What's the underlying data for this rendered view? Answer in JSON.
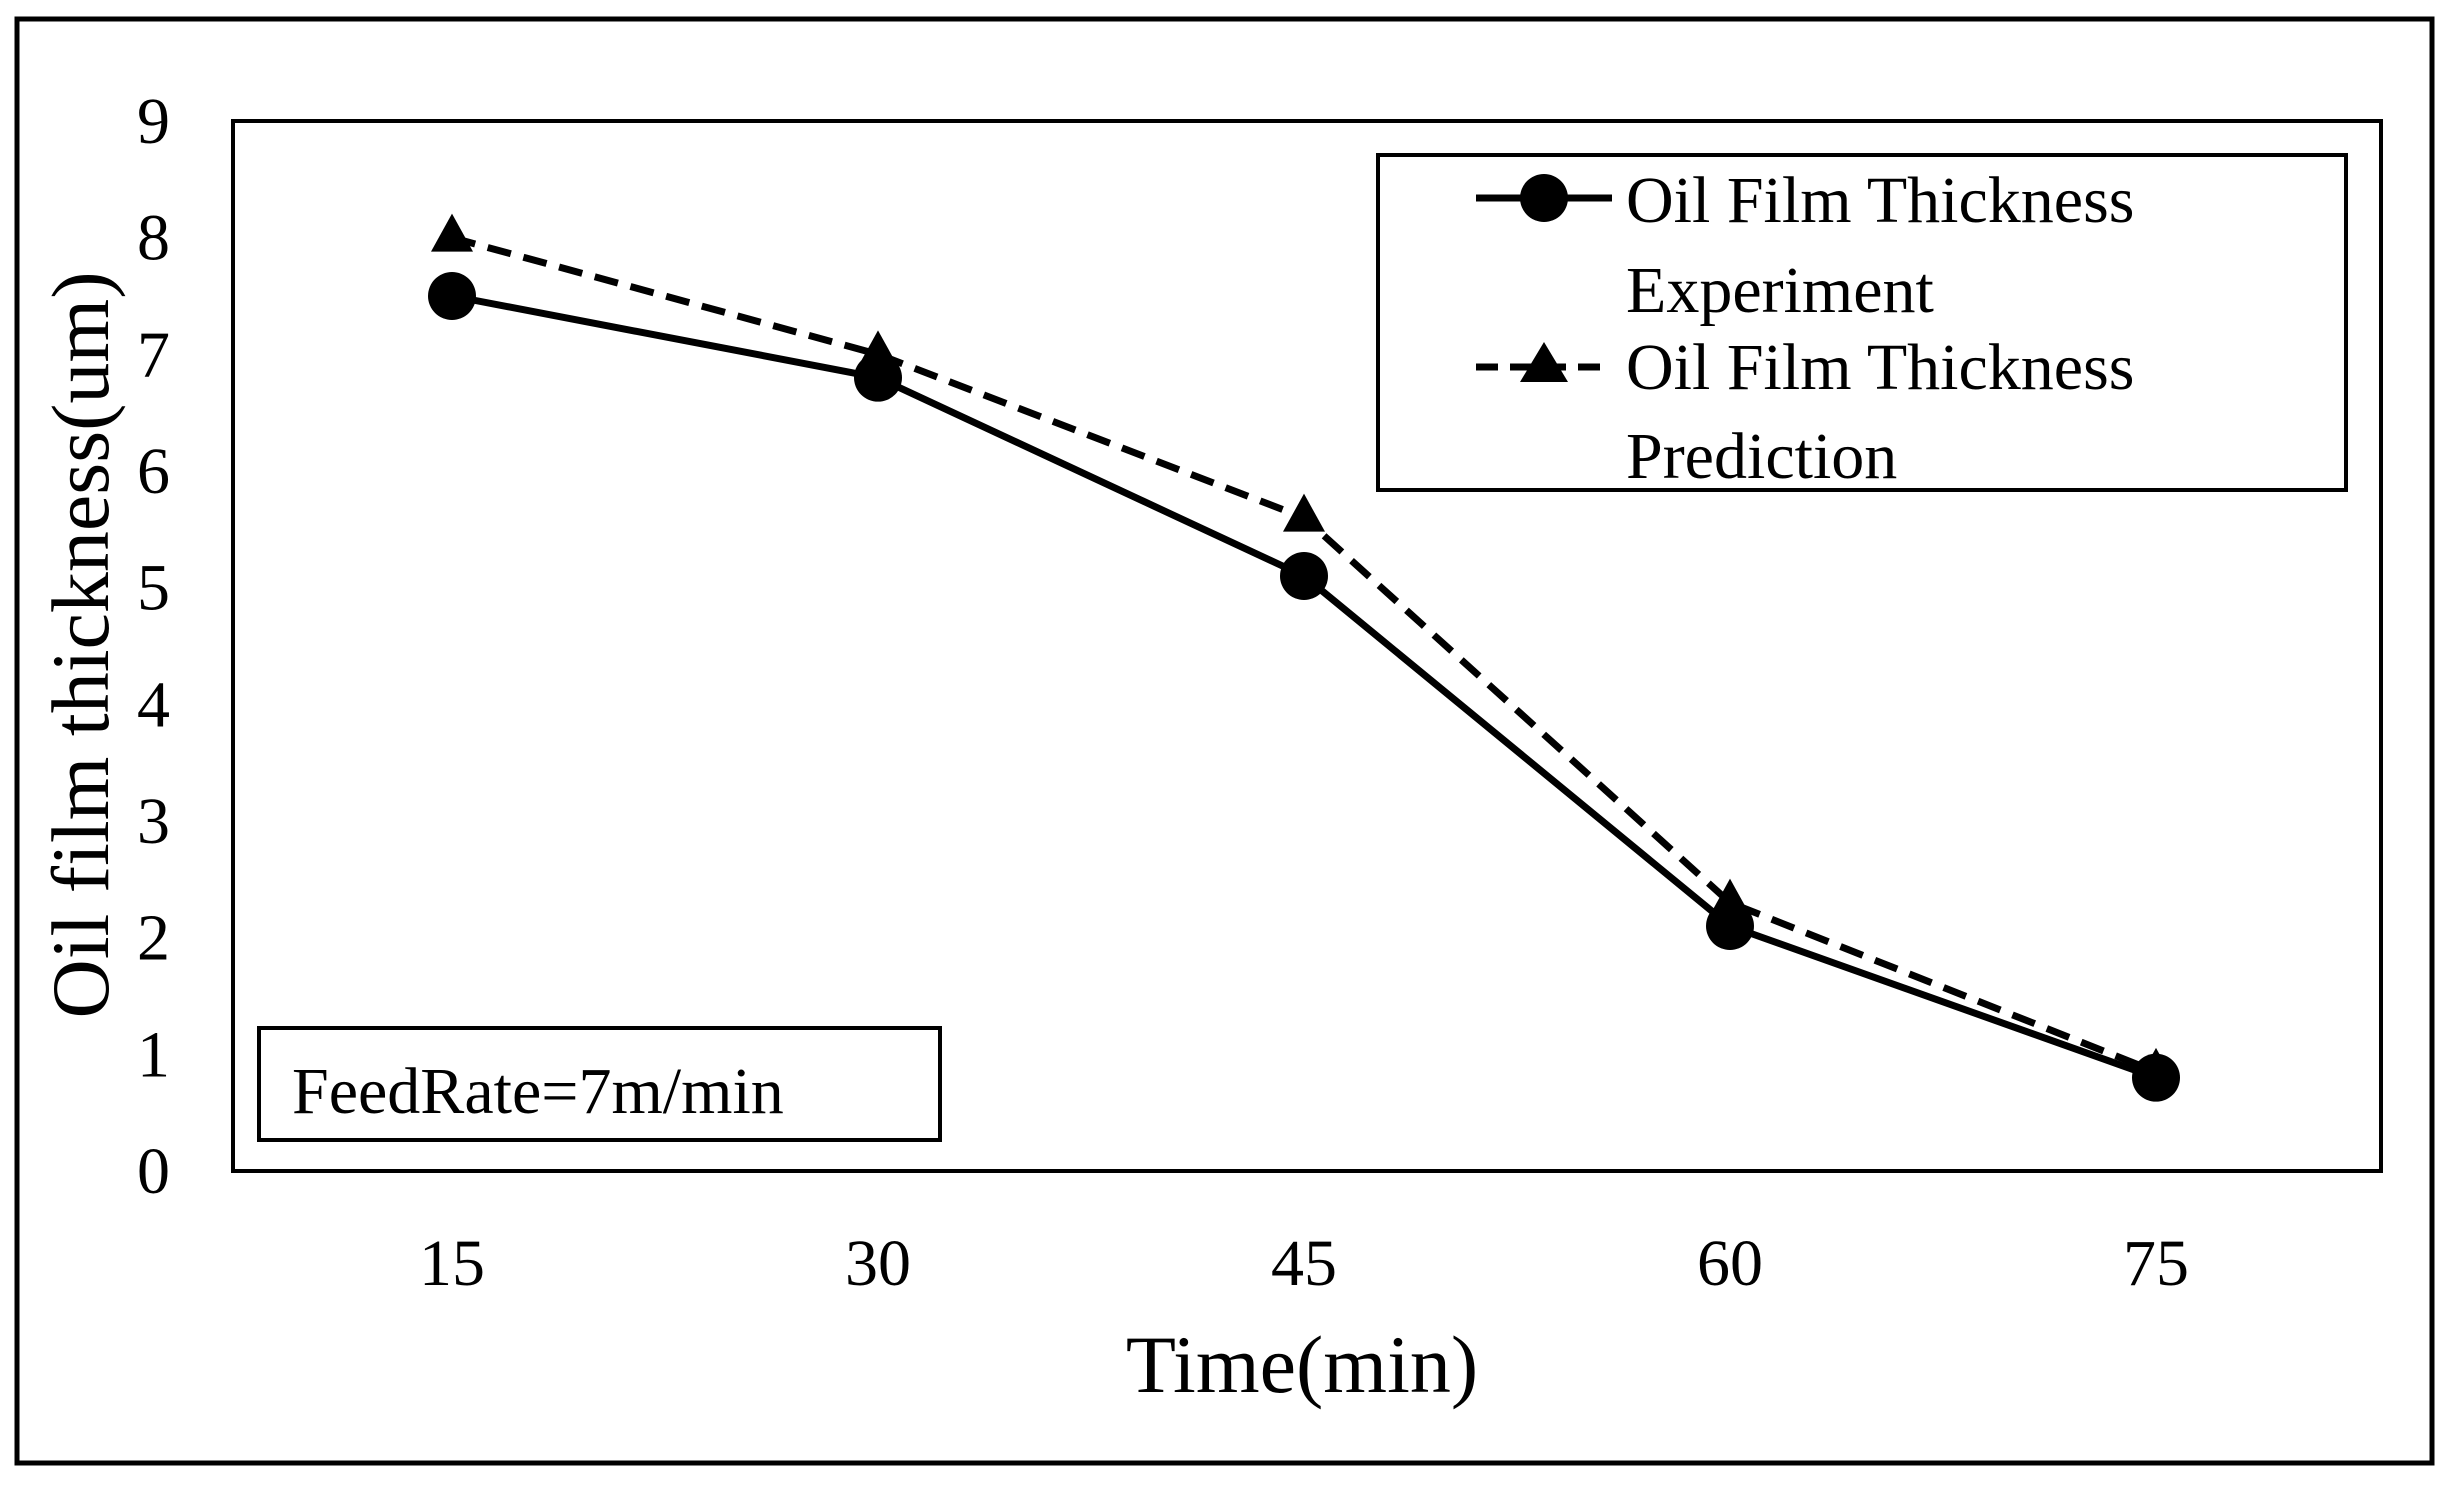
{
  "chart_data": {
    "type": "line",
    "title": "",
    "xlabel": "Time(min)",
    "ylabel": "Oil film thickness(um)",
    "categories": [
      "15",
      "30",
      "45",
      "60",
      "75"
    ],
    "ylim": [
      0,
      9
    ],
    "yticks": [
      "0",
      "1",
      "2",
      "3",
      "4",
      "5",
      "6",
      "7",
      "8",
      "9"
    ],
    "grid": false,
    "legend_position": "top-right",
    "series": [
      {
        "name": "Oil Film Thickness Experiment",
        "name_lines": [
          "Oil Film Thickness",
          "Experiment"
        ],
        "values": [
          7.5,
          6.8,
          5.1,
          2.1,
          0.8
        ],
        "line_style": "solid",
        "marker": "circle",
        "color": "#000000"
      },
      {
        "name": "Oil Film Thickness Prediction",
        "name_lines": [
          "Oil Film Thickness",
          "Prediction"
        ],
        "values": [
          8.0,
          7.0,
          5.6,
          2.3,
          0.85
        ],
        "line_style": "dashed",
        "marker": "triangle",
        "color": "#000000"
      }
    ],
    "annotation": "FeedRate=7m/min"
  }
}
